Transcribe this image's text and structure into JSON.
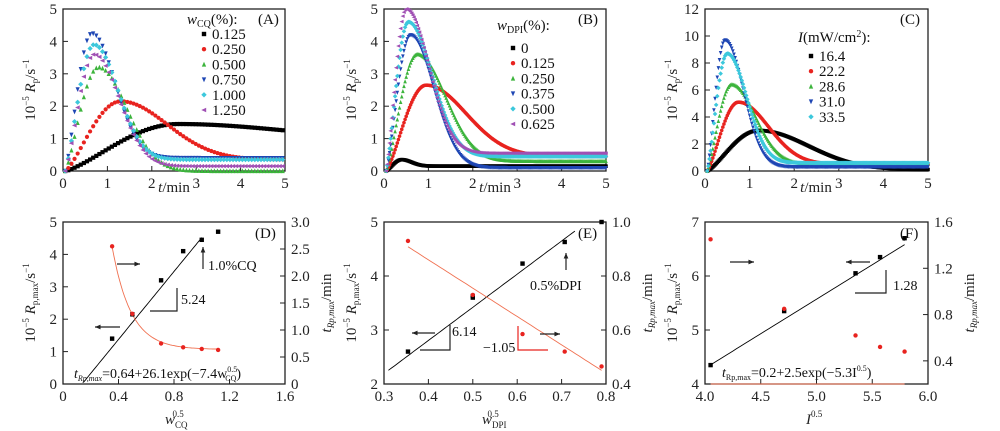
{
  "chart_data": [
    {
      "id": "A",
      "type": "scatter",
      "panel_label": "(A)",
      "xlabel": "t/min",
      "ylabel": "10^-5 Rp/s^-1",
      "xlim": [
        0,
        5
      ],
      "ylim": [
        0,
        5
      ],
      "xticks": [
        0,
        1,
        2,
        3,
        4,
        5
      ],
      "yticks": [
        0,
        1,
        2,
        3,
        4,
        5
      ],
      "grid": false,
      "legend_title": "wCQ(%):",
      "legend_position": "top-right",
      "series": [
        {
          "name": "0.125",
          "color": "#000000",
          "marker": "square",
          "peak_t": 2.6,
          "peak_rp": 1.45,
          "end_rp": 0.95,
          "rise": 0.9,
          "decay": 3.2
        },
        {
          "name": "0.250",
          "color": "#e8231f",
          "marker": "circle",
          "peak_t": 1.3,
          "peak_rp": 2.15,
          "end_rp": 0.35,
          "rise": 0.5,
          "decay": 1.4
        },
        {
          "name": "0.500",
          "color": "#3cb43c",
          "marker": "triangle",
          "peak_t": 0.8,
          "peak_rp": 3.2,
          "end_rp": 0.0,
          "rise": 0.3,
          "decay": 0.85
        },
        {
          "name": "0.750",
          "color": "#1e46b4",
          "marker": "tri-down",
          "peak_t": 0.65,
          "peak_rp": 4.25,
          "end_rp": 0.4,
          "rise": 0.25,
          "decay": 0.7
        },
        {
          "name": "1.000",
          "color": "#3cc8dc",
          "marker": "diamond",
          "peak_t": 0.7,
          "peak_rp": 3.9,
          "end_rp": 0.35,
          "rise": 0.27,
          "decay": 0.72
        },
        {
          "name": "1.250",
          "color": "#a050b4",
          "marker": "tri-left",
          "peak_t": 0.7,
          "peak_rp": 3.6,
          "end_rp": 0.15,
          "rise": 0.28,
          "decay": 0.75
        }
      ]
    },
    {
      "id": "B",
      "type": "scatter",
      "panel_label": "(B)",
      "xlabel": "t/min",
      "ylabel": "10^-5 Rp/s^-1",
      "xlim": [
        0,
        5
      ],
      "ylim": [
        0,
        5
      ],
      "xticks": [
        0,
        1,
        2,
        3,
        4,
        5
      ],
      "yticks": [
        0,
        1,
        2,
        3,
        4,
        5
      ],
      "grid": false,
      "legend_title": "wDPI(%):",
      "legend_position": "top-right",
      "series": [
        {
          "name": "0",
          "color": "#000000",
          "marker": "square",
          "peak_t": 0.4,
          "peak_rp": 0.35,
          "end_rp": 0.15,
          "rise": 0.15,
          "decay": 0.3
        },
        {
          "name": "0.125",
          "color": "#e8231f",
          "marker": "circle",
          "peak_t": 0.95,
          "peak_rp": 2.65,
          "end_rp": 0.45,
          "rise": 0.35,
          "decay": 1.2
        },
        {
          "name": "0.250",
          "color": "#3cb43c",
          "marker": "triangle",
          "peak_t": 0.75,
          "peak_rp": 3.6,
          "end_rp": 0.3,
          "rise": 0.28,
          "decay": 0.85
        },
        {
          "name": "0.375",
          "color": "#1e46b4",
          "marker": "tri-down",
          "peak_t": 0.6,
          "peak_rp": 4.2,
          "end_rp": 0.1,
          "rise": 0.22,
          "decay": 0.7
        },
        {
          "name": "0.500",
          "color": "#3cc8dc",
          "marker": "diamond",
          "peak_t": 0.55,
          "peak_rp": 4.6,
          "end_rp": 0.45,
          "rise": 0.2,
          "decay": 0.72
        },
        {
          "name": "0.625",
          "color": "#a050b4",
          "marker": "tri-left",
          "peak_t": 0.5,
          "peak_rp": 5.0,
          "end_rp": 0.55,
          "rise": 0.18,
          "decay": 0.68
        }
      ]
    },
    {
      "id": "C",
      "type": "scatter",
      "panel_label": "(C)",
      "xlabel": "t/min",
      "ylabel": "10^-5 Rp/s^-1",
      "xlim": [
        0,
        5
      ],
      "ylim": [
        0,
        12
      ],
      "xticks": [
        0,
        1,
        2,
        3,
        4,
        5
      ],
      "yticks": [
        0,
        2,
        4,
        6,
        8,
        10,
        12
      ],
      "grid": false,
      "legend_title": "I(mW/cm2):",
      "legend_position": "top-right",
      "series": [
        {
          "name": "16.4",
          "color": "#000000",
          "marker": "square",
          "peak_t": 1.2,
          "peak_rp": 3.0,
          "end_rp": 0.1,
          "rise": 0.5,
          "decay": 1.5
        },
        {
          "name": "22.2",
          "color": "#e8231f",
          "marker": "circle",
          "peak_t": 0.75,
          "peak_rp": 5.1,
          "end_rp": 0.5,
          "rise": 0.32,
          "decay": 0.9
        },
        {
          "name": "28.6",
          "color": "#3cb43c",
          "marker": "triangle",
          "peak_t": 0.6,
          "peak_rp": 6.4,
          "end_rp": 0.5,
          "rise": 0.26,
          "decay": 0.7
        },
        {
          "name": "31.0",
          "color": "#1e46b4",
          "marker": "tri-down",
          "peak_t": 0.45,
          "peak_rp": 9.7,
          "end_rp": 0.3,
          "rise": 0.18,
          "decay": 0.55
        },
        {
          "name": "33.5",
          "color": "#3cc8dc",
          "marker": "diamond",
          "peak_t": 0.5,
          "peak_rp": 8.7,
          "end_rp": 0.6,
          "rise": 0.2,
          "decay": 0.58
        }
      ]
    },
    {
      "id": "D",
      "type": "scatter",
      "panel_label": "(D)",
      "xlabel": "wCQ^0.5",
      "ylabel": "10^-5 Rp,max/s^-1",
      "ylabel_right": "tRp,max/min",
      "xlim": [
        0,
        1.6
      ],
      "ylim": [
        0,
        5
      ],
      "ylim_right": [
        0,
        3.0
      ],
      "xticks": [
        0,
        0.4,
        0.8,
        1.2,
        1.6
      ],
      "xtick_labels": [
        "0",
        "0.4",
        "0.8",
        "1.2",
        "1.6"
      ],
      "yticks": [
        0,
        1,
        2,
        3,
        4,
        5
      ],
      "yticks_right": [
        0,
        0.5,
        1.0,
        1.5,
        2.0,
        2.5,
        3.0
      ],
      "ytick_right_labels": [
        "0",
        "0.5",
        "1.0",
        "1.5",
        "2.0",
        "2.5",
        "3.0"
      ],
      "grid": false,
      "series": [
        {
          "name": "Rp,max",
          "axis": "left",
          "color": "#000000",
          "marker": "square",
          "x": [
            0.354,
            0.5,
            0.707,
            0.866,
            1.0,
            1.118
          ],
          "y": [
            1.4,
            2.15,
            3.2,
            4.1,
            4.45,
            4.7
          ]
        },
        {
          "name": "tRp,max",
          "axis": "right",
          "color": "#e8231f",
          "marker": "circle",
          "x": [
            0.354,
            0.5,
            0.707,
            0.866,
            1.0,
            1.118
          ],
          "y": [
            2.55,
            1.3,
            0.75,
            0.68,
            0.65,
            0.63
          ]
        }
      ],
      "fit_lines": [
        {
          "axis": "left",
          "color": "#000000",
          "kind": "linear",
          "slope": 5.24,
          "x_range": [
            0.15,
            1.0
          ],
          "intercept": -0.72
        },
        {
          "axis": "right",
          "color": "#f07050",
          "kind": "exp",
          "a": 0.64,
          "b": 26.1,
          "c": -7.4,
          "x_range": [
            0.354,
            1.118
          ]
        }
      ],
      "annotations": [
        {
          "text": "1.0%CQ"
        },
        {
          "text": "5.24"
        },
        {
          "text": "tRp,max=0.64+26.1exp(-7.4wCQ^0.5)"
        }
      ]
    },
    {
      "id": "E",
      "type": "scatter",
      "panel_label": "(E)",
      "xlabel": "wDPI^0.5",
      "ylabel": "10^-5 Rp,max/s^-1",
      "ylabel_right": "tRp,max/min",
      "xlim": [
        0.3,
        0.8
      ],
      "ylim": [
        2,
        5
      ],
      "ylim_right": [
        0.4,
        1.0
      ],
      "xticks": [
        0.3,
        0.4,
        0.5,
        0.6,
        0.7,
        0.8
      ],
      "xtick_labels": [
        "0.3",
        "0.4",
        "0.5",
        "0.6",
        "0.7",
        "0.8"
      ],
      "yticks": [
        2,
        3,
        4,
        5
      ],
      "yticks_right": [
        0.4,
        0.6,
        0.8,
        1.0
      ],
      "ytick_right_labels": [
        "0.4",
        "0.6",
        "0.8",
        "1.0"
      ],
      "grid": false,
      "series": [
        {
          "name": "Rp,max",
          "axis": "left",
          "color": "#000000",
          "marker": "square",
          "x": [
            0.354,
            0.5,
            0.5,
            0.612,
            0.707,
            0.79
          ],
          "y": [
            2.6,
            3.6,
            3.63,
            4.23,
            4.63,
            5.0
          ]
        },
        {
          "name": "tRp,max",
          "axis": "right",
          "color": "#e8231f",
          "marker": "circle",
          "x": [
            0.354,
            0.5,
            0.612,
            0.707,
            0.79
          ],
          "y": [
            0.93,
            0.73,
            0.585,
            0.52,
            0.465
          ]
        }
      ],
      "fit_lines": [
        {
          "axis": "left",
          "color": "#000000",
          "kind": "linear",
          "slope": 6.14,
          "x_range": [
            0.31,
            0.73
          ],
          "intercept": 0.35
        },
        {
          "axis": "right",
          "color": "#f07050",
          "kind": "linear",
          "slope": -1.05,
          "x_range": [
            0.354,
            0.79
          ],
          "intercept": 1.28
        }
      ],
      "annotations": [
        {
          "text": "0.5%DPI"
        },
        {
          "text": "6.14"
        },
        {
          "text": "-1.05"
        }
      ]
    },
    {
      "id": "F",
      "type": "scatter",
      "panel_label": "(F)",
      "xlabel": "I^0.5",
      "ylabel": "10^-5 Rp,max/s^-1",
      "ylabel_right": "tRp,max/min",
      "xlim": [
        4.0,
        6.0
      ],
      "ylim": [
        4,
        7
      ],
      "ylim_right": [
        0.2,
        1.6
      ],
      "xticks": [
        4.0,
        4.5,
        5.0,
        5.5,
        6.0
      ],
      "xtick_labels": [
        "4.0",
        "4.5",
        "5.0",
        "5.5",
        "6.0"
      ],
      "yticks": [
        4,
        5,
        6,
        7
      ],
      "yticks_right": [
        0.4,
        0.8,
        1.2,
        1.6
      ],
      "ytick_right_labels": [
        "0.4",
        "0.8",
        "1.2",
        "1.6"
      ],
      "grid": false,
      "series": [
        {
          "name": "Rp,max",
          "axis": "left",
          "color": "#000000",
          "marker": "square",
          "x": [
            4.05,
            4.71,
            5.35,
            5.57,
            5.79
          ],
          "y": [
            4.35,
            5.35,
            6.05,
            6.35,
            6.7
          ]
        },
        {
          "name": "tRp,max",
          "axis": "right",
          "color": "#e8231f",
          "marker": "circle",
          "x": [
            4.05,
            4.71,
            5.35,
            5.57,
            5.79
          ],
          "y": [
            1.45,
            0.85,
            0.62,
            0.52,
            0.48
          ]
        }
      ],
      "fit_lines": [
        {
          "axis": "left",
          "color": "#000000",
          "kind": "linear",
          "slope": 1.28,
          "x_range": [
            4.05,
            5.79
          ],
          "intercept": -0.83
        },
        {
          "axis": "right",
          "color": "#f07050",
          "kind": "exp",
          "a": 0.2,
          "b": 2.5,
          "c": -5.3,
          "x_range": [
            4.05,
            5.79
          ]
        }
      ],
      "annotations": [
        {
          "text": "1.28"
        },
        {
          "text": "tRp,max=0.2+2.5exp(-5.3I^0.5)"
        }
      ]
    }
  ],
  "labels": {
    "t_min": "t/min",
    "ylab_prefix": "10",
    "ylab_exp": "−5",
    "ylab_R": "R",
    "ylab_p": "p",
    "ylab_pmax": "p,max",
    "ylab_unit": "/s",
    "ylab_unit_exp": "−1",
    "t_right": "t",
    "t_right_sub": "Rp,max",
    "t_right_unit": "/min",
    "legend_A_w": "w",
    "legend_A_sub": "CQ",
    "legend_A_rest": "(%):",
    "legend_B_w": "w",
    "legend_B_sub": "DPI",
    "legend_B_rest": "(%):",
    "legend_C_I": "I",
    "legend_C_rest": "(mW/cm",
    "legend_C_sup": "2",
    "legend_C_end": "):",
    "xlab_D_w": "w",
    "xlab_D_sub": "CQ",
    "xlab_D_sup": "0.5",
    "xlab_E_w": "w",
    "xlab_E_sub": "DPI",
    "xlab_E_sup": "0.5",
    "xlab_F_I": "I",
    "xlab_F_sup": "0.5",
    "annot_D_cq": "1.0%CQ",
    "annot_D_slope": "5.24",
    "annot_D_eq_t": "t",
    "annot_D_eq_sub": "Rp,max",
    "annot_D_eq_body": "=0.64+26.1exp(−7.4w",
    "annot_D_eq_sup": "0.5",
    "annot_D_eq_sub2": "CQ",
    "annot_D_eq_end": ")",
    "annot_E_dpi": "0.5%DPI",
    "annot_E_slope1": "6.14",
    "annot_E_slope2": "−1.05",
    "annot_F_slope": "1.28",
    "annot_F_eq_t": "t",
    "annot_F_eq_sub": "Rp,max",
    "annot_F_eq_body": "=0.2+2.5exp(−5.3I",
    "annot_F_eq_sup": "0.5",
    "annot_F_eq_end": ")"
  }
}
